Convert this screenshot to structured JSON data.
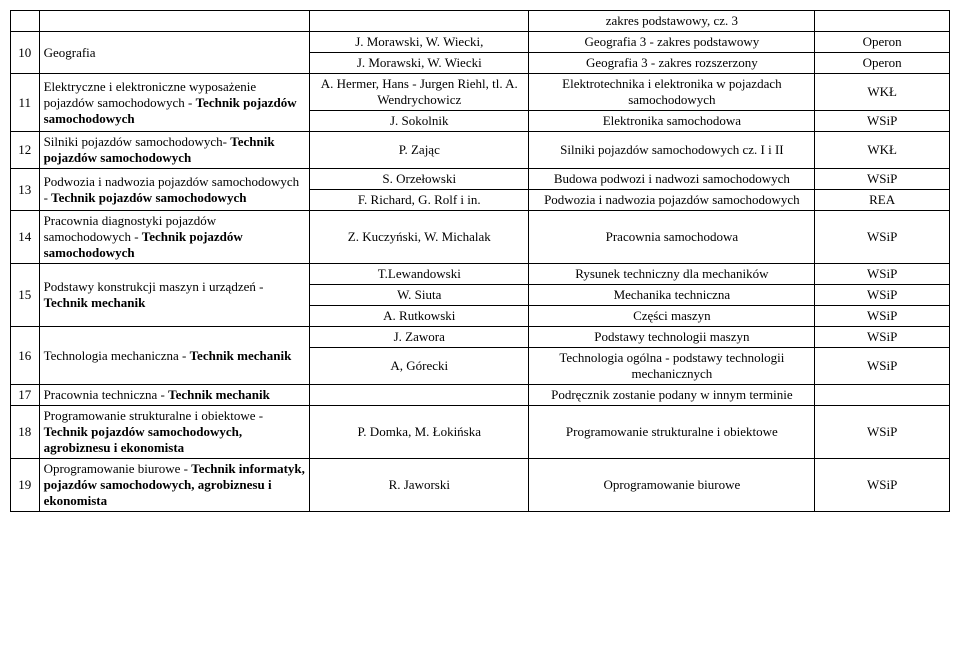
{
  "r0_title": "zakres podstawowy, cz. 3",
  "r1_num": "10",
  "r1_subj": "Geografia",
  "r1a_auth": "J. Morawski, W. Wiecki,",
  "r1a_title": "Geografia 3 - zakres podstawowy",
  "r1a_pub": "Operon",
  "r1b_auth": "J. Morawski, W. Wiecki",
  "r1b_title": "Geografia 3 - zakres rozszerzony",
  "r1b_pub": "Operon",
  "r2_num": "11",
  "r2_subj_a": "Elektryczne i elektroniczne wyposażenie pojazdów samochodowych - ",
  "r2_subj_b": "Technik pojazdów samochodowych",
  "r2a_auth": "A. Hermer, Hans - Jurgen Riehl, tl. A. Wendrychowicz",
  "r2a_title": "Elektrotechnika i elektronika w pojazdach samochodowych",
  "r2a_pub": "WKŁ",
  "r2b_auth": "J. Sokolnik",
  "r2b_title": "Elektronika samochodowa",
  "r2b_pub": "WSiP",
  "r3_num": "12",
  "r3_subj_a": "Silniki pojazdów samochodowych- ",
  "r3_subj_b": "Technik pojazdów samochodowych",
  "r3_auth": "P. Zając",
  "r3_title": "Silniki pojazdów samochodowych cz. I i II",
  "r3_pub": "WKŁ",
  "r4_num": "13",
  "r4_subj_a": "Podwozia i nadwozia pojazdów samochodowych - ",
  "r4_subj_b": "Technik pojazdów samochodowych",
  "r4a_auth": "S. Orzełowski",
  "r4a_title": "Budowa podwozi i nadwozi samochodowych",
  "r4a_pub": "WSiP",
  "r4b_auth": "F. Richard, G. Rolf i in.",
  "r4b_title": "Podwozia i nadwozia pojazdów samochodowych",
  "r4b_pub": "REA",
  "r5_num": "14",
  "r5_subj_a": "Pracownia diagnostyki pojazdów samochodowych - ",
  "r5_subj_b": "Technik pojazdów samochodowych",
  "r5_auth": "Z. Kuczyński, W. Michalak",
  "r5_title": "Pracownia samochodowa",
  "r5_pub": "WSiP",
  "r6_num": "15",
  "r6_subj_a": "Podstawy konstrukcji maszyn i urządzeń - ",
  "r6_subj_b": "Technik mechanik",
  "r6a_auth": "T.Lewandowski",
  "r6a_title": "Rysunek techniczny dla mechaników",
  "r6a_pub": "WSiP",
  "r6b_auth": "W. Siuta",
  "r6b_title": "Mechanika techniczna",
  "r6b_pub": "WSiP",
  "r6c_auth": "A. Rutkowski",
  "r6c_title": "Części maszyn",
  "r6c_pub": "WSiP",
  "r7_num": "16",
  "r7_subj_a": "Technologia mechaniczna - ",
  "r7_subj_b": "Technik mechanik",
  "r7a_auth": "J. Zawora",
  "r7a_title": "Podstawy technologii maszyn",
  "r7a_pub": "WSiP",
  "r7b_auth": "A, Górecki",
  "r7b_title": "Technologia ogólna - podstawy technologii mechanicznych",
  "r7b_pub": "WSiP",
  "r8_num": "17",
  "r8_subj_a": "Pracownia techniczna - ",
  "r8_subj_b": "Technik mechanik",
  "r8_auth": "",
  "r8_title": "Podręcznik zostanie podany w innym terminie",
  "r8_pub": "",
  "r9_num": "18",
  "r9_subj_a": "Programowanie strukturalne i obiektowe - ",
  "r9_subj_b": "Technik pojazdów samochodowych, agrobiznesu i ekonomista",
  "r9_auth": "P. Domka, M. Łokińska",
  "r9_title": "Programowanie strukturalne i obiektowe",
  "r9_pub": "WSiP",
  "r10_num": "19",
  "r10_subj_a": "Oprogramowanie biurowe - ",
  "r10_subj_b": "Technik informatyk, pojazdów samochodowych, agrobiznesu i ekonomista",
  "r10_auth": "R. Jaworski",
  "r10_title": "Oprogramowanie biurowe",
  "r10_pub": "WSiP"
}
